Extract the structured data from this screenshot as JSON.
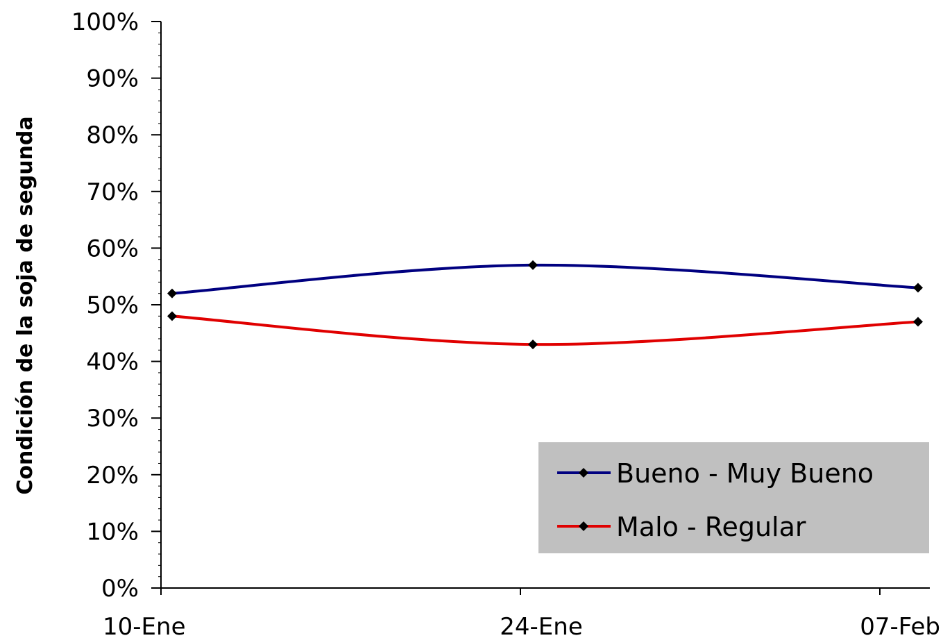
{
  "chart_data": {
    "type": "line",
    "title": "",
    "xlabel": "",
    "ylabel": "Condición de la soja de segunda",
    "categories": [
      "10-Ene",
      "24-Ene",
      "07-Feb"
    ],
    "ylim": [
      0,
      100
    ],
    "yticks": [
      "0%",
      "10%",
      "20%",
      "30%",
      "40%",
      "50%",
      "60%",
      "70%",
      "80%",
      "90%",
      "100%"
    ],
    "grid": false,
    "legend_position": "bottom-right",
    "series": [
      {
        "name": "Bueno - Muy Bueno",
        "values": [
          52,
          57,
          53
        ],
        "color": "#000080",
        "marker": "diamond"
      },
      {
        "name": "Malo - Regular",
        "values": [
          48,
          43,
          47
        ],
        "color": "#e00000",
        "marker": "diamond"
      }
    ],
    "legend_background": "#c0c0c0"
  }
}
